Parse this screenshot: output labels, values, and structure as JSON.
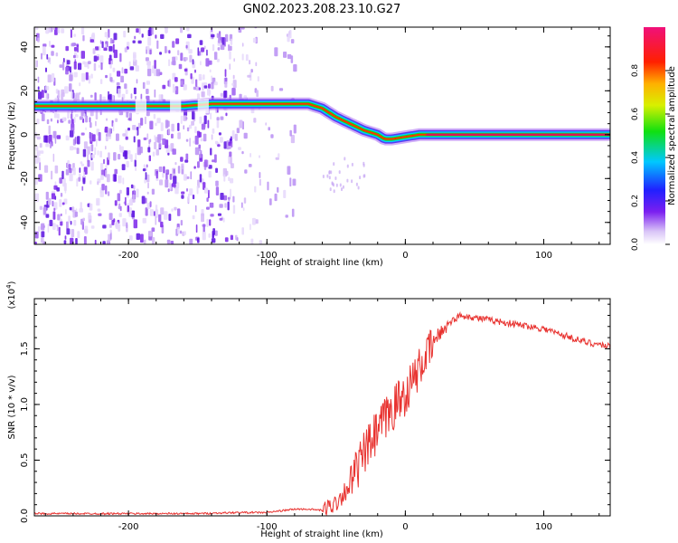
{
  "title": "GN02.2023.208.23.10.G27",
  "chart_data": [
    {
      "type": "heatmap",
      "xlabel": "Height of straight line (km)",
      "ylabel": "Frequency (Hz)",
      "xlim": [
        -268,
        148
      ],
      "ylim": [
        -50,
        49
      ],
      "x_ticks": [
        -200,
        -100,
        0,
        100
      ],
      "y_ticks": [
        -40,
        -20,
        0,
        20,
        40
      ],
      "ridge": {
        "x": [
          -268,
          -190,
          -160,
          -140,
          -120,
          -100,
          -80,
          -70,
          -60,
          -50,
          -40,
          -30,
          -20,
          -15,
          -10,
          0,
          10,
          50,
          100,
          148
        ],
        "y": [
          13,
          13,
          13,
          14,
          14,
          14,
          14,
          14,
          12,
          8,
          5,
          2,
          0,
          -2,
          -2,
          -1,
          0,
          0,
          0,
          0
        ]
      },
      "colorbar": {
        "label": "Normalized spectral amplitude",
        "range": [
          0.0,
          1.0
        ],
        "ticks": [
          0.0,
          0.2,
          0.4,
          0.6,
          0.8
        ],
        "tick_labels": [
          "0.0",
          "0.2",
          "0.4",
          "0.6",
          "0.8"
        ]
      },
      "grid": false
    },
    {
      "type": "line",
      "xlabel": "Height of straight line (km)",
      "ylabel": "SNR (10 * v/v)",
      "multiplier_label": "(x10",
      "multiplier_exp": "4",
      "multiplier_close": ")",
      "xlim": [
        -268,
        148
      ],
      "ylim": [
        0,
        1.95
      ],
      "x_ticks": [
        -200,
        -100,
        0,
        100
      ],
      "y_ticks": [
        0.0,
        0.5,
        1.0,
        1.5
      ],
      "y_tick_labels": [
        "0.0",
        "0.5",
        "1.0",
        "1.5"
      ],
      "series": [
        {
          "color": "#e8322f",
          "x": [
            -268,
            -200,
            -150,
            -120,
            -100,
            -80,
            -70,
            -60,
            -50,
            -40,
            -30,
            -20,
            -10,
            0,
            10,
            20,
            30,
            40,
            50,
            60,
            70,
            80,
            90,
            100,
            110,
            120,
            130,
            140,
            148
          ],
          "y": [
            0.02,
            0.02,
            0.02,
            0.03,
            0.03,
            0.06,
            0.06,
            0.05,
            0.12,
            0.28,
            0.55,
            0.75,
            0.95,
            1.1,
            1.32,
            1.55,
            1.72,
            1.8,
            1.78,
            1.76,
            1.74,
            1.72,
            1.7,
            1.68,
            1.64,
            1.6,
            1.56,
            1.54,
            1.52
          ]
        }
      ],
      "grid": false
    }
  ]
}
